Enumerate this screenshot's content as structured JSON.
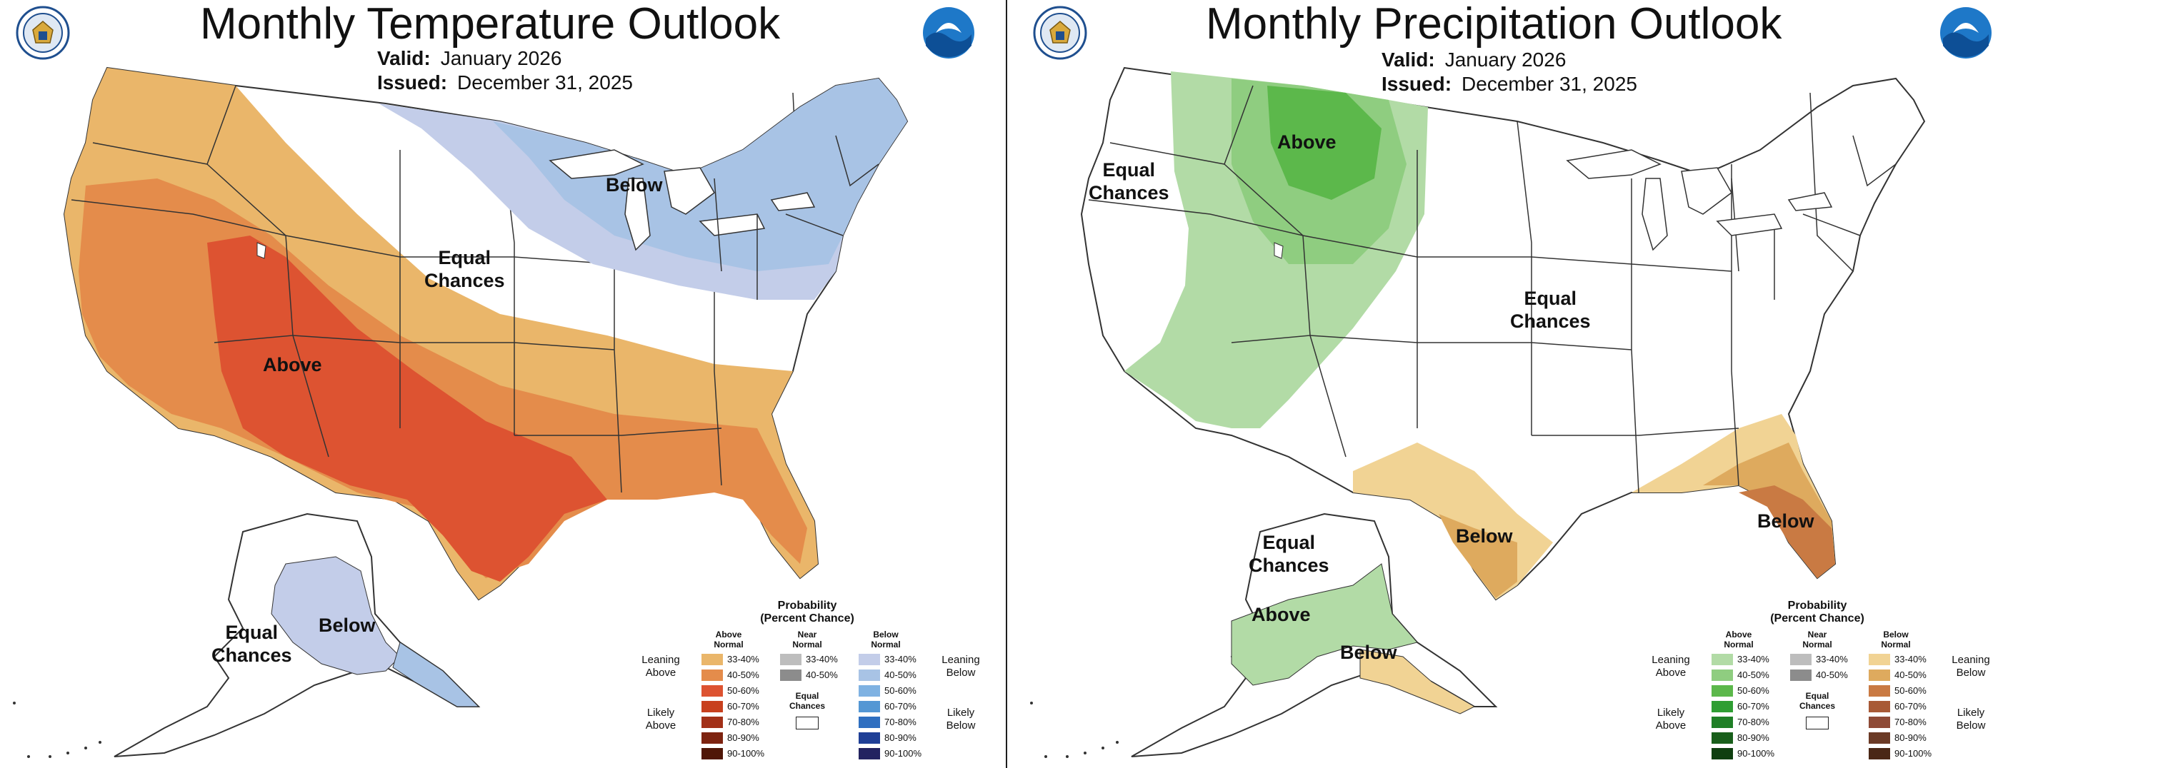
{
  "temperature": {
    "title": "Monthly Temperature Outlook",
    "valid_label": "Valid:",
    "valid_value": "January 2026",
    "issued_label": "Issued:",
    "issued_value": "December 31, 2025",
    "region_labels": {
      "above": "Above",
      "below_northeast": "Below",
      "equal_chances": [
        "Equal",
        "Chances"
      ],
      "alaska_below": "Below",
      "alaska_equal": [
        "Equal",
        "Chances"
      ]
    }
  },
  "precipitation": {
    "title": "Monthly Precipitation Outlook",
    "valid_label": "Valid:",
    "valid_value": "January 2026",
    "issued_label": "Issued:",
    "issued_value": "December 31, 2025",
    "region_labels": {
      "above_west": "Above",
      "equal_west": [
        "Equal",
        "Chances"
      ],
      "equal_central": [
        "Equal",
        "Chances"
      ],
      "below_texas": "Below",
      "below_florida": "Below",
      "alaska_equal": [
        "Equal",
        "Chances"
      ],
      "alaska_above": "Above",
      "alaska_below": "Below"
    }
  },
  "legend": {
    "title": [
      "Probability",
      "(Percent Chance)"
    ],
    "above_header": [
      "Above",
      "Normal"
    ],
    "near_header": [
      "Near",
      "Normal"
    ],
    "below_header": [
      "Below",
      "Normal"
    ],
    "leaning_label": [
      "Leaning",
      "Above"
    ],
    "likely_label": [
      "Likely",
      "Above"
    ],
    "leaning_below_label": [
      "Leaning",
      "Below"
    ],
    "likely_below_label": [
      "Likely",
      "Below"
    ],
    "ranges": [
      "33-40%",
      "40-50%",
      "50-60%",
      "60-70%",
      "70-80%",
      "80-90%",
      "90-100%"
    ],
    "near_ranges": [
      "33-40%",
      "40-50%"
    ],
    "equal_chances": [
      "Equal",
      "Chances"
    ],
    "temp_above_colors": [
      "#eab66a",
      "#e48c4b",
      "#dd5331",
      "#c8401e",
      "#a23018",
      "#7d2310",
      "#4f1607"
    ],
    "temp_below_colors": [
      "#c3cde9",
      "#a8c3e5",
      "#7fb2e2",
      "#5497d4",
      "#2f6fc0",
      "#1f3f96",
      "#232360"
    ],
    "precip_above_colors": [
      "#b2dba6",
      "#8fcd80",
      "#5cb84b",
      "#2f9e33",
      "#1f7f26",
      "#195f1b",
      "#0f3f10"
    ],
    "precip_below_colors": [
      "#f1d394",
      "#deaa5e",
      "#c97a43",
      "#a85a36",
      "#8e4a36",
      "#6b3a26",
      "#4a2716"
    ],
    "near_colors": [
      "#bdbdbd",
      "#8c8c8c"
    ]
  }
}
